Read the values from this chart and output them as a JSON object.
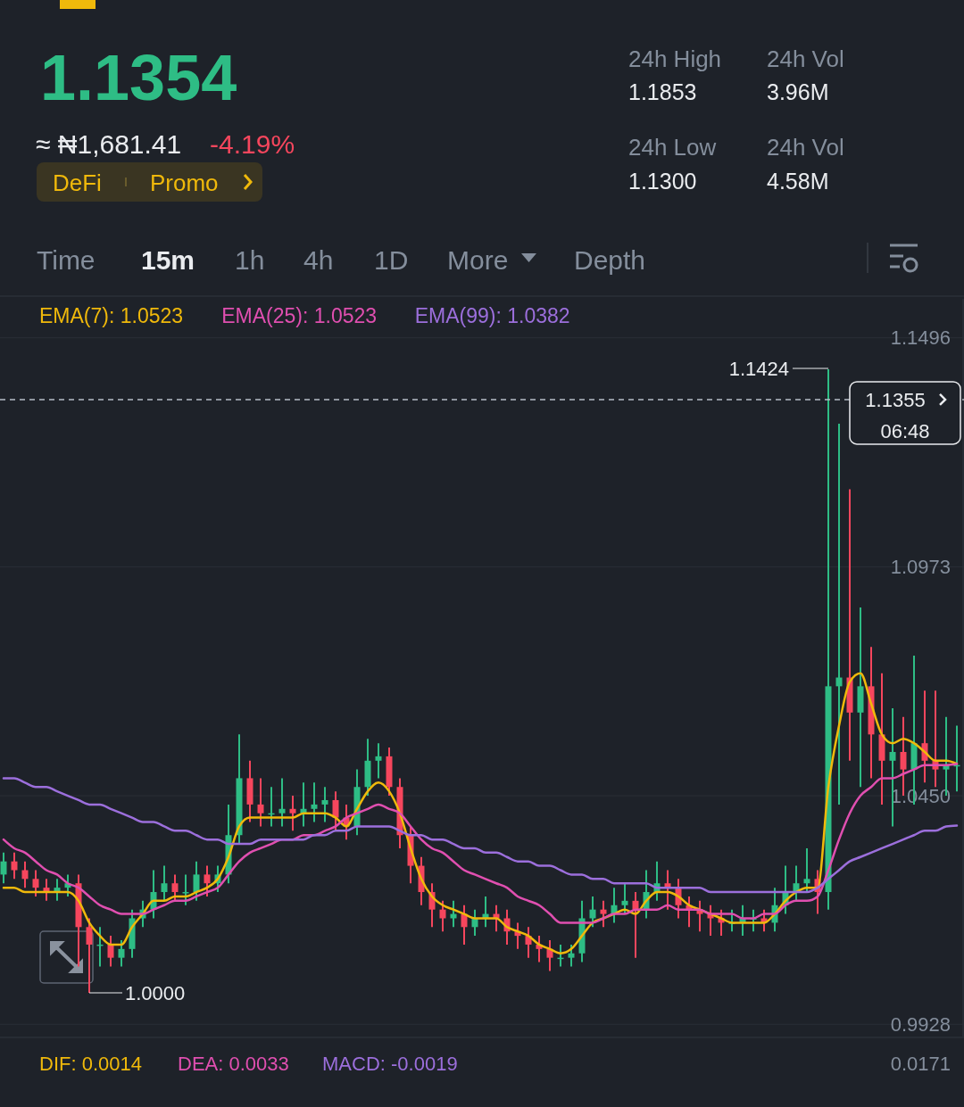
{
  "chart_data": {
    "type": "candlestick",
    "title": "1.1354",
    "subtitle": "≈ ₦1,681.41",
    "categories": [
      null,
      null,
      null,
      null,
      null,
      null,
      null,
      null,
      null,
      null,
      null,
      null,
      null,
      null,
      null,
      null,
      null,
      null,
      null,
      null,
      null,
      null,
      null,
      null,
      null,
      null,
      null,
      null,
      null,
      null,
      null,
      null,
      null,
      null,
      null,
      null,
      null,
      null,
      null,
      null,
      null,
      null,
      null,
      null,
      null,
      null,
      null,
      null,
      null,
      null,
      null,
      null,
      null,
      null,
      null,
      null,
      null,
      null,
      null,
      null,
      null,
      null,
      null,
      null,
      null,
      null,
      null,
      null,
      null,
      null,
      null,
      null,
      null,
      null,
      null,
      null,
      null,
      null,
      null,
      null,
      null,
      null,
      null,
      null,
      null,
      null,
      null,
      null,
      null,
      null
    ],
    "ohlc": [
      [
        1.027,
        1.032,
        1.025,
        1.03
      ],
      [
        1.03,
        1.032,
        1.026,
        1.028
      ],
      [
        1.028,
        1.03,
        1.024,
        1.026
      ],
      [
        1.026,
        1.028,
        1.022,
        1.024
      ],
      [
        1.024,
        1.026,
        1.021,
        1.023
      ],
      [
        1.023,
        1.026,
        1.021,
        1.024
      ],
      [
        1.024,
        1.027,
        1.022,
        1.025
      ],
      [
        1.025,
        1.027,
        1.006,
        1.015
      ],
      [
        1.015,
        1.017,
        1.0,
        1.011
      ],
      [
        1.011,
        1.015,
        1.006,
        1.011
      ],
      [
        1.011,
        1.013,
        1.006,
        1.008
      ],
      [
        1.008,
        1.012,
        1.006,
        1.01
      ],
      [
        1.01,
        1.019,
        1.008,
        1.017
      ],
      [
        1.017,
        1.021,
        1.015,
        1.019
      ],
      [
        1.019,
        1.028,
        1.017,
        1.023
      ],
      [
        1.023,
        1.029,
        1.021,
        1.025
      ],
      [
        1.025,
        1.027,
        1.021,
        1.023
      ],
      [
        1.023,
        1.027,
        1.02,
        1.023
      ],
      [
        1.023,
        1.03,
        1.021,
        1.027
      ],
      [
        1.027,
        1.029,
        1.022,
        1.025
      ],
      [
        1.025,
        1.029,
        1.023,
        1.027
      ],
      [
        1.027,
        1.043,
        1.025,
        1.036
      ],
      [
        1.036,
        1.059,
        1.034,
        1.049
      ],
      [
        1.049,
        1.053,
        1.039,
        1.043
      ],
      [
        1.043,
        1.049,
        1.038,
        1.041
      ],
      [
        1.041,
        1.047,
        1.038,
        1.041
      ],
      [
        1.041,
        1.049,
        1.038,
        1.042
      ],
      [
        1.042,
        1.045,
        1.037,
        1.041
      ],
      [
        1.041,
        1.048,
        1.038,
        1.042
      ],
      [
        1.042,
        1.048,
        1.039,
        1.043
      ],
      [
        1.043,
        1.047,
        1.039,
        1.044
      ],
      [
        1.044,
        1.046,
        1.037,
        1.04
      ],
      [
        1.04,
        1.043,
        1.035,
        1.038
      ],
      [
        1.038,
        1.051,
        1.036,
        1.047
      ],
      [
        1.047,
        1.058,
        1.045,
        1.053
      ],
      [
        1.053,
        1.057,
        1.049,
        1.054
      ],
      [
        1.054,
        1.056,
        1.045,
        1.047
      ],
      [
        1.047,
        1.049,
        1.033,
        1.036
      ],
      [
        1.036,
        1.038,
        1.025,
        1.029
      ],
      [
        1.029,
        1.031,
        1.02,
        1.023
      ],
      [
        1.023,
        1.025,
        1.015,
        1.019
      ],
      [
        1.019,
        1.021,
        1.014,
        1.017
      ],
      [
        1.017,
        1.021,
        1.015,
        1.018
      ],
      [
        1.018,
        1.02,
        1.011,
        1.015
      ],
      [
        1.015,
        1.019,
        1.013,
        1.017
      ],
      [
        1.017,
        1.022,
        1.015,
        1.018
      ],
      [
        1.018,
        1.02,
        1.014,
        1.017
      ],
      [
        1.017,
        1.019,
        1.011,
        1.014
      ],
      [
        1.014,
        1.016,
        1.01,
        1.013
      ],
      [
        1.013,
        1.015,
        1.008,
        1.011
      ],
      [
        1.011,
        1.013,
        1.007,
        1.01
      ],
      [
        1.01,
        1.012,
        1.005,
        1.008
      ],
      [
        1.008,
        1.011,
        1.006,
        1.008
      ],
      [
        1.008,
        1.011,
        1.006,
        1.009
      ],
      [
        1.009,
        1.021,
        1.007,
        1.017
      ],
      [
        1.017,
        1.022,
        1.015,
        1.019
      ],
      [
        1.019,
        1.021,
        1.015,
        1.018
      ],
      [
        1.018,
        1.024,
        1.016,
        1.02
      ],
      [
        1.02,
        1.025,
        1.018,
        1.021
      ],
      [
        1.021,
        1.023,
        1.008,
        1.019
      ],
      [
        1.019,
        1.028,
        1.017,
        1.023
      ],
      [
        1.023,
        1.03,
        1.021,
        1.025
      ],
      [
        1.025,
        1.028,
        1.019,
        1.024
      ],
      [
        1.024,
        1.026,
        1.017,
        1.02
      ],
      [
        1.02,
        1.022,
        1.015,
        1.019
      ],
      [
        1.019,
        1.021,
        1.014,
        1.018
      ],
      [
        1.018,
        1.02,
        1.013,
        1.017
      ],
      [
        1.017,
        1.019,
        1.013,
        1.016
      ],
      [
        1.016,
        1.019,
        1.014,
        1.016
      ],
      [
        1.016,
        1.02,
        1.013,
        1.017
      ],
      [
        1.017,
        1.019,
        1.014,
        1.017
      ],
      [
        1.017,
        1.019,
        1.014,
        1.016
      ],
      [
        1.016,
        1.024,
        1.014,
        1.02
      ],
      [
        1.02,
        1.029,
        1.018,
        1.023
      ],
      [
        1.023,
        1.029,
        1.021,
        1.025
      ],
      [
        1.025,
        1.033,
        1.023,
        1.026
      ],
      [
        1.026,
        1.028,
        1.018,
        1.023
      ],
      [
        1.023,
        1.1424,
        1.019,
        1.07
      ],
      [
        1.07,
        1.13,
        1.043,
        1.072
      ],
      [
        1.072,
        1.115,
        1.053,
        1.064
      ],
      [
        1.064,
        1.088,
        1.047,
        1.07
      ],
      [
        1.07,
        1.079,
        1.049,
        1.059
      ],
      [
        1.059,
        1.073,
        1.043,
        1.053
      ],
      [
        1.053,
        1.065,
        1.038,
        1.055
      ],
      [
        1.055,
        1.063,
        1.045,
        1.051
      ],
      [
        1.051,
        1.077,
        1.043,
        1.057
      ],
      [
        1.057,
        1.069,
        1.048,
        1.053
      ],
      [
        1.053,
        1.069,
        1.047,
        1.051
      ],
      [
        1.051,
        1.063,
        1.045,
        1.052
      ],
      [
        1.052,
        1.061,
        1.046,
        1.052
      ]
    ],
    "series": [
      {
        "name": "EMA(7): 1.0523",
        "type": "line",
        "color": "#f0b90b",
        "values": [
          1.024,
          1.024,
          1.023,
          1.023,
          1.023,
          1.023,
          1.023,
          1.021,
          1.016,
          1.013,
          1.011,
          1.011,
          1.015,
          1.018,
          1.021,
          1.021,
          1.022,
          1.022,
          1.023,
          1.024,
          1.026,
          1.031,
          1.038,
          1.04,
          1.04,
          1.04,
          1.04,
          1.04,
          1.041,
          1.041,
          1.041,
          1.04,
          1.038,
          1.042,
          1.046,
          1.048,
          1.046,
          1.041,
          1.033,
          1.026,
          1.022,
          1.02,
          1.019,
          1.018,
          1.017,
          1.017,
          1.017,
          1.015,
          1.014,
          1.013,
          1.011,
          1.01,
          1.009,
          1.01,
          1.013,
          1.016,
          1.017,
          1.018,
          1.019,
          1.018,
          1.021,
          1.023,
          1.023,
          1.022,
          1.02,
          1.019,
          1.018,
          1.017,
          1.016,
          1.016,
          1.016,
          1.016,
          1.018,
          1.021,
          1.023,
          1.024,
          1.024,
          1.047,
          1.061,
          1.071,
          1.073,
          1.066,
          1.059,
          1.057,
          1.058,
          1.057,
          1.055,
          1.053,
          1.053,
          1.0523
        ]
      },
      {
        "name": "EMA(25): 1.0523",
        "type": "line",
        "color": "#e04fb0",
        "values": [
          1.035,
          1.033,
          1.032,
          1.03,
          1.028,
          1.027,
          1.025,
          1.024,
          1.022,
          1.02,
          1.019,
          1.018,
          1.018,
          1.018,
          1.019,
          1.02,
          1.021,
          1.021,
          1.022,
          1.023,
          1.024,
          1.027,
          1.03,
          1.032,
          1.033,
          1.034,
          1.035,
          1.035,
          1.036,
          1.036,
          1.037,
          1.038,
          1.04,
          1.041,
          1.042,
          1.043,
          1.042,
          1.041,
          1.038,
          1.035,
          1.033,
          1.032,
          1.03,
          1.028,
          1.027,
          1.026,
          1.025,
          1.024,
          1.022,
          1.021,
          1.02,
          1.018,
          1.016,
          1.016,
          1.016,
          1.016,
          1.017,
          1.018,
          1.018,
          1.019,
          1.019,
          1.019,
          1.02,
          1.019,
          1.019,
          1.019,
          1.018,
          1.018,
          1.018,
          1.017,
          1.017,
          1.018,
          1.018,
          1.02,
          1.021,
          1.021,
          1.022,
          1.028,
          1.035,
          1.041,
          1.045,
          1.047,
          1.049,
          1.049,
          1.05,
          1.051,
          1.052,
          1.052,
          1.052,
          1.0523
        ]
      },
      {
        "name": "EMA(99): 1.0382",
        "type": "line",
        "color": "#9c6fdc",
        "values": [
          1.049,
          1.049,
          1.048,
          1.047,
          1.047,
          1.046,
          1.045,
          1.044,
          1.043,
          1.043,
          1.042,
          1.041,
          1.04,
          1.039,
          1.039,
          1.038,
          1.037,
          1.037,
          1.036,
          1.035,
          1.035,
          1.034,
          1.034,
          1.034,
          1.035,
          1.035,
          1.035,
          1.035,
          1.035,
          1.036,
          1.036,
          1.037,
          1.037,
          1.038,
          1.038,
          1.038,
          1.038,
          1.037,
          1.036,
          1.036,
          1.035,
          1.035,
          1.034,
          1.033,
          1.033,
          1.032,
          1.032,
          1.031,
          1.03,
          1.03,
          1.029,
          1.029,
          1.028,
          1.027,
          1.027,
          1.026,
          1.026,
          1.025,
          1.025,
          1.025,
          1.025,
          1.024,
          1.024,
          1.024,
          1.024,
          1.024,
          1.023,
          1.023,
          1.023,
          1.023,
          1.023,
          1.023,
          1.023,
          1.023,
          1.023,
          1.023,
          1.024,
          1.026,
          1.028,
          1.03,
          1.031,
          1.032,
          1.033,
          1.034,
          1.035,
          1.036,
          1.037,
          1.037,
          1.038,
          1.0382
        ]
      }
    ],
    "ylim": [
      0.99,
      1.1585
    ],
    "yticks": [
      1.1496,
      1.0973,
      {
        "value": 1.045,
        "label": "1.0450"
      },
      0.9928
    ],
    "grid": "y",
    "legend": "top left",
    "ref_lines": [
      {
        "axis": "y",
        "value": 1.1355,
        "label": "1.1355",
        "color": "#b7bdc6",
        "line_style": "dashed"
      }
    ],
    "annotations": [
      "-4.19%",
      "DeFi",
      "Promo",
      "24h High",
      "1.1853",
      "24h Vol",
      "3.96M",
      "24h Low",
      "1.1300",
      "24h Vol",
      "4.58M",
      "Time",
      "15m",
      "1h",
      "4h",
      "1D",
      "More",
      "Depth",
      "06:48",
      "1.1424",
      "1.0000",
      "DIF: 0.0014",
      "DEA: 0.0033",
      "MACD: -0.0019",
      "0.0171"
    ]
  }
}
